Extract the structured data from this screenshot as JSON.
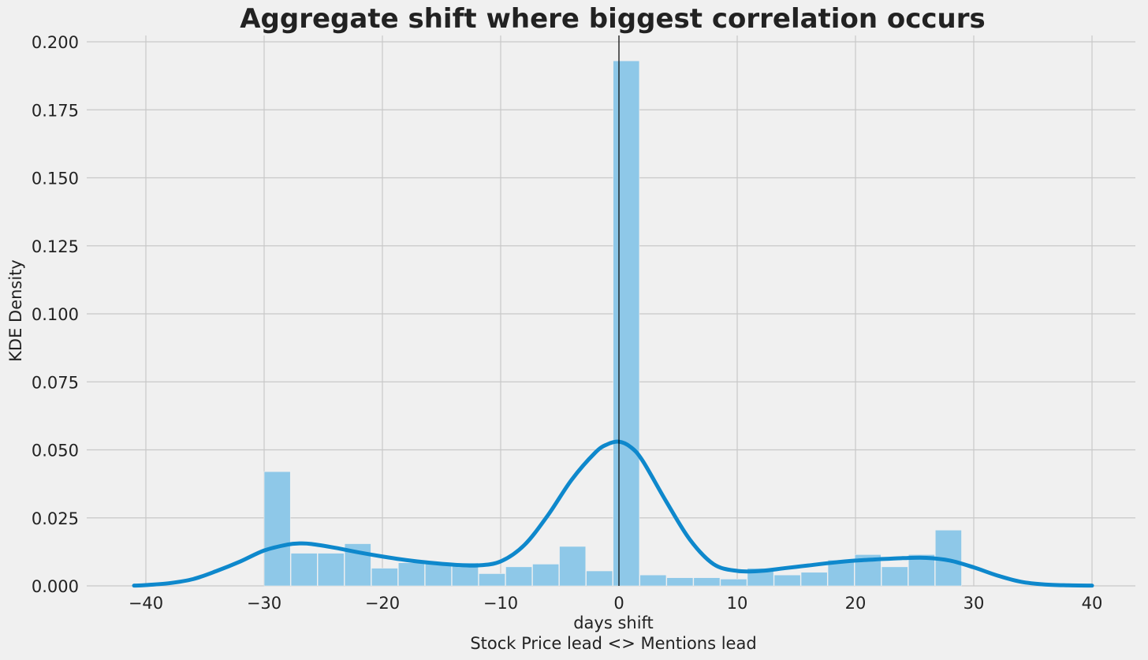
{
  "chart_data": {
    "type": "bar",
    "title": "Aggregate shift where biggest correlation occurs",
    "xlabel": "days shift",
    "xlabel2": "Stock Price lead <> Mentions lead",
    "ylabel": "KDE Density",
    "xlim": [
      -41,
      40
    ],
    "ylim": [
      0,
      0.2
    ],
    "grid": true,
    "xticks": [
      -40,
      -30,
      -20,
      -10,
      0,
      10,
      20,
      30,
      40
    ],
    "xtick_labels": [
      "−40",
      "−30",
      "−20",
      "−10",
      "0",
      "10",
      "20",
      "30",
      "40"
    ],
    "yticks": [
      0,
      0.025,
      0.05,
      0.075,
      0.1,
      0.125,
      0.15,
      0.175,
      0.2
    ],
    "ytick_labels": [
      "0.000",
      "0.025",
      "0.050",
      "0.075",
      "0.100",
      "0.125",
      "0.150",
      "0.175",
      "0.200"
    ],
    "vline_x": 0,
    "histogram": {
      "bin_width": 2.27,
      "bin_starts": [
        -30,
        -27.73,
        -25.46,
        -23.19,
        -20.92,
        -18.65,
        -16.38,
        -14.11,
        -11.84,
        -9.57,
        -7.3,
        -5.03,
        -2.76,
        -0.49,
        1.78,
        4.05,
        6.32,
        8.59,
        10.86,
        13.13,
        15.4,
        17.67,
        19.94,
        22.21,
        24.48,
        26.75
      ],
      "values": [
        0.042,
        0.012,
        0.012,
        0.0155,
        0.0065,
        0.0085,
        0.0085,
        0.0085,
        0.0045,
        0.007,
        0.008,
        0.0145,
        0.0055,
        0.193,
        0.004,
        0.003,
        0.003,
        0.0025,
        0.0065,
        0.004,
        0.005,
        0.0095,
        0.0115,
        0.007,
        0.0115,
        0.0205
      ],
      "color": "#8ec8e8"
    },
    "kde": {
      "x": [
        -41,
        -40,
        -38,
        -36,
        -34,
        -32,
        -30,
        -28,
        -27,
        -26,
        -24,
        -22,
        -20,
        -18,
        -16,
        -14,
        -12,
        -10,
        -8,
        -6,
        -4,
        -2,
        -1,
        0,
        1,
        2,
        4,
        6,
        8,
        10,
        12,
        14,
        16,
        18,
        20,
        22,
        24,
        26,
        28,
        30,
        32,
        34,
        36,
        38,
        40
      ],
      "y": [
        0.0001,
        0.0003,
        0.001,
        0.0025,
        0.0055,
        0.009,
        0.013,
        0.0152,
        0.0156,
        0.0154,
        0.014,
        0.0123,
        0.0108,
        0.0095,
        0.0085,
        0.0078,
        0.0075,
        0.009,
        0.015,
        0.026,
        0.039,
        0.049,
        0.052,
        0.053,
        0.051,
        0.046,
        0.031,
        0.017,
        0.008,
        0.0055,
        0.0055,
        0.0065,
        0.0075,
        0.0085,
        0.0093,
        0.0098,
        0.0102,
        0.0103,
        0.0093,
        0.0068,
        0.0038,
        0.0015,
        0.0005,
        0.0002,
        0.0001
      ],
      "color": "#0e88cc"
    }
  }
}
